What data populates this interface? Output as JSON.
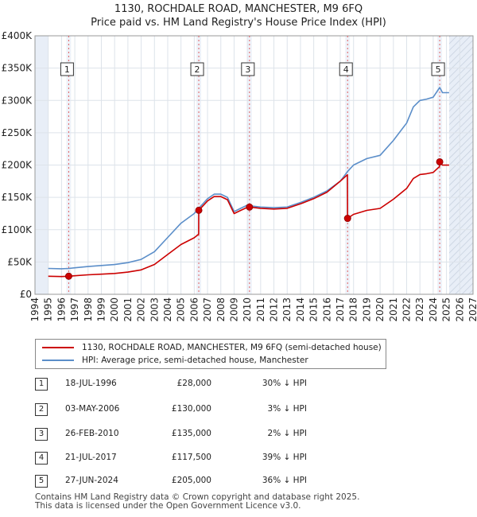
{
  "chart_data": {
    "type": "line",
    "title": "1130, ROCHDALE ROAD, MANCHESTER, M9 6FQ",
    "subtitle": "Price paid vs. HM Land Registry's House Price Index (HPI)",
    "xlim": [
      1994,
      2027
    ],
    "ylim": [
      0,
      400000
    ],
    "x_ticks": [
      1994,
      1995,
      1996,
      1997,
      1998,
      1999,
      2000,
      2001,
      2002,
      2003,
      2004,
      2005,
      2006,
      2007,
      2008,
      2009,
      2010,
      2011,
      2012,
      2013,
      2014,
      2015,
      2016,
      2017,
      2018,
      2019,
      2020,
      2021,
      2022,
      2023,
      2024,
      2025,
      2026,
      2027
    ],
    "y_ticks": [
      {
        "value": 0,
        "label": "£0"
      },
      {
        "value": 50000,
        "label": "£50K"
      },
      {
        "value": 100000,
        "label": "£100K"
      },
      {
        "value": 150000,
        "label": "£150K"
      },
      {
        "value": 200000,
        "label": "£200K"
      },
      {
        "value": 250000,
        "label": "£250K"
      },
      {
        "value": 300000,
        "label": "£300K"
      },
      {
        "value": 350000,
        "label": "£350K"
      },
      {
        "value": 400000,
        "label": "£400K"
      }
    ],
    "data_start": 1995.0,
    "data_end": 2025.2,
    "grid": true,
    "series": [
      {
        "name": "hpi",
        "label": "HPI: Average price, semi-detached house, Manchester",
        "color": "#5b8ec9",
        "points": [
          [
            1995.0,
            40000
          ],
          [
            1996.0,
            39500
          ],
          [
            1996.54,
            40000
          ],
          [
            1997.0,
            41000
          ],
          [
            1998.0,
            43000
          ],
          [
            1999.0,
            44500
          ],
          [
            2000.0,
            46000
          ],
          [
            2001.0,
            49000
          ],
          [
            2002.0,
            54000
          ],
          [
            2003.0,
            66000
          ],
          [
            2004.0,
            88000
          ],
          [
            2005.0,
            110000
          ],
          [
            2006.0,
            125000
          ],
          [
            2006.34,
            133000
          ],
          [
            2007.0,
            148000
          ],
          [
            2007.5,
            155000
          ],
          [
            2008.0,
            155000
          ],
          [
            2008.5,
            150000
          ],
          [
            2009.0,
            128000
          ],
          [
            2009.5,
            133000
          ],
          [
            2010.0,
            138000
          ],
          [
            2010.16,
            137000
          ],
          [
            2011.0,
            135000
          ],
          [
            2012.0,
            134000
          ],
          [
            2013.0,
            135000
          ],
          [
            2014.0,
            142000
          ],
          [
            2015.0,
            150000
          ],
          [
            2016.0,
            160000
          ],
          [
            2017.0,
            175000
          ],
          [
            2017.55,
            190000
          ],
          [
            2018.0,
            200000
          ],
          [
            2019.0,
            210000
          ],
          [
            2020.0,
            215000
          ],
          [
            2021.0,
            238000
          ],
          [
            2022.0,
            265000
          ],
          [
            2022.5,
            290000
          ],
          [
            2023.0,
            300000
          ],
          [
            2023.5,
            302000
          ],
          [
            2024.0,
            305000
          ],
          [
            2024.49,
            320000
          ],
          [
            2024.7,
            312000
          ],
          [
            2025.2,
            312000
          ]
        ]
      },
      {
        "name": "price_paid",
        "label": "1130, ROCHDALE ROAD, MANCHESTER, M9 6FQ (semi-detached house)",
        "color": "#cc0000",
        "points": [
          [
            1995.0,
            28000
          ],
          [
            1996.0,
            27500
          ],
          [
            1996.54,
            28000
          ],
          [
            1997.0,
            28700
          ],
          [
            1998.0,
            30100
          ],
          [
            1999.0,
            31100
          ],
          [
            2000.0,
            32200
          ],
          [
            2001.0,
            34300
          ],
          [
            2002.0,
            37800
          ],
          [
            2003.0,
            46200
          ],
          [
            2004.0,
            61600
          ],
          [
            2005.0,
            77000
          ],
          [
            2006.0,
            87500
          ],
          [
            2006.33,
            93100
          ],
          [
            2006.34,
            130000
          ],
          [
            2007.0,
            144500
          ],
          [
            2007.5,
            151300
          ],
          [
            2008.0,
            151300
          ],
          [
            2008.5,
            146400
          ],
          [
            2009.0,
            124900
          ],
          [
            2009.5,
            129800
          ],
          [
            2010.0,
            134700
          ],
          [
            2010.16,
            135000
          ],
          [
            2011.0,
            133000
          ],
          [
            2012.0,
            132000
          ],
          [
            2013.0,
            133000
          ],
          [
            2014.0,
            140000
          ],
          [
            2015.0,
            148000
          ],
          [
            2016.0,
            158000
          ],
          [
            2017.0,
            175000
          ],
          [
            2017.54,
            185000
          ],
          [
            2017.55,
            117500
          ],
          [
            2018.0,
            123700
          ],
          [
            2019.0,
            129800
          ],
          [
            2020.0,
            132900
          ],
          [
            2021.0,
            147100
          ],
          [
            2022.0,
            163800
          ],
          [
            2022.5,
            179200
          ],
          [
            2023.0,
            185400
          ],
          [
            2023.5,
            186600
          ],
          [
            2024.0,
            188500
          ],
          [
            2024.48,
            197800
          ],
          [
            2024.49,
            205000
          ],
          [
            2024.7,
            199900
          ],
          [
            2025.2,
            199900
          ]
        ]
      }
    ],
    "sales": [
      {
        "num": "1",
        "year": 1996.54,
        "value": 28000
      },
      {
        "num": "2",
        "year": 2006.34,
        "value": 130000
      },
      {
        "num": "3",
        "year": 2010.16,
        "value": 135000
      },
      {
        "num": "4",
        "year": 2017.55,
        "value": 117500
      },
      {
        "num": "5",
        "year": 2024.49,
        "value": 205000
      }
    ]
  },
  "table": [
    {
      "num": "1",
      "date": "18-JUL-1996",
      "price": "£28,000",
      "hpi": "30% ↓ HPI"
    },
    {
      "num": "2",
      "date": "03-MAY-2006",
      "price": "£130,000",
      "hpi": "3% ↓ HPI"
    },
    {
      "num": "3",
      "date": "26-FEB-2010",
      "price": "£135,000",
      "hpi": "2% ↓ HPI"
    },
    {
      "num": "4",
      "date": "21-JUL-2017",
      "price": "£117,500",
      "hpi": "39% ↓ HPI"
    },
    {
      "num": "5",
      "date": "27-JUN-2024",
      "price": "£205,000",
      "hpi": "36% ↓ HPI"
    }
  ],
  "footer": {
    "line1": "Contains HM Land Registry data © Crown copyright and database right 2025.",
    "line2": "This data is licensed under the Open Government Licence v3.0."
  }
}
